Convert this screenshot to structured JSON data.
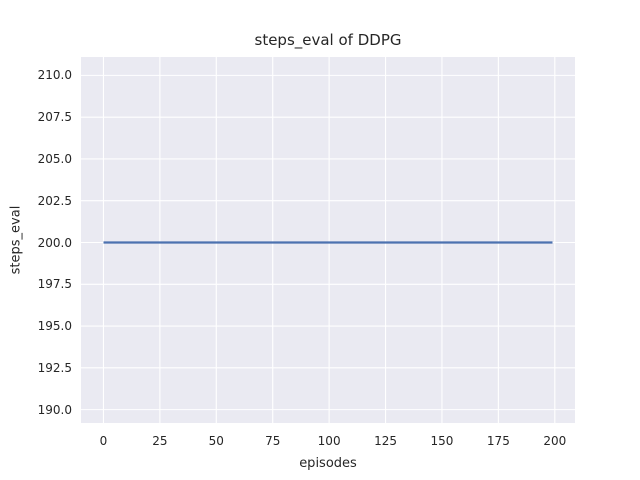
{
  "chart_data": {
    "type": "line",
    "title": "steps_eval of DDPG",
    "xlabel": "episodes",
    "ylabel": "steps_eval",
    "xticks": [
      0,
      25,
      50,
      75,
      100,
      125,
      150,
      175,
      200
    ],
    "xtick_labels": [
      "0",
      "25",
      "50",
      "75",
      "100",
      "125",
      "150",
      "175",
      "200"
    ],
    "yticks": [
      190.0,
      192.5,
      195.0,
      197.5,
      200.0,
      202.5,
      205.0,
      207.5,
      210.0
    ],
    "ytick_labels": [
      "190.0",
      "192.5",
      "195.0",
      "197.5",
      "200.0",
      "202.5",
      "205.0",
      "207.5",
      "210.0"
    ],
    "xlim": [
      -9.95,
      208.95
    ],
    "ylim": [
      189.2,
      211.1
    ],
    "grid": true,
    "legend": "none",
    "series": [
      {
        "name": "steps_eval of DDPG",
        "color": "#4C72B0",
        "x": [
          0,
          199
        ],
        "y": [
          200,
          200
        ],
        "note": "constant value 200 for every episode from 0 to 199"
      }
    ],
    "colors": {
      "figure_bg": "#FFFFFF",
      "plot_bg": "#EAEAF2",
      "grid": "#FFFFFF",
      "text": "#262626",
      "line": "#4C72B0"
    }
  }
}
